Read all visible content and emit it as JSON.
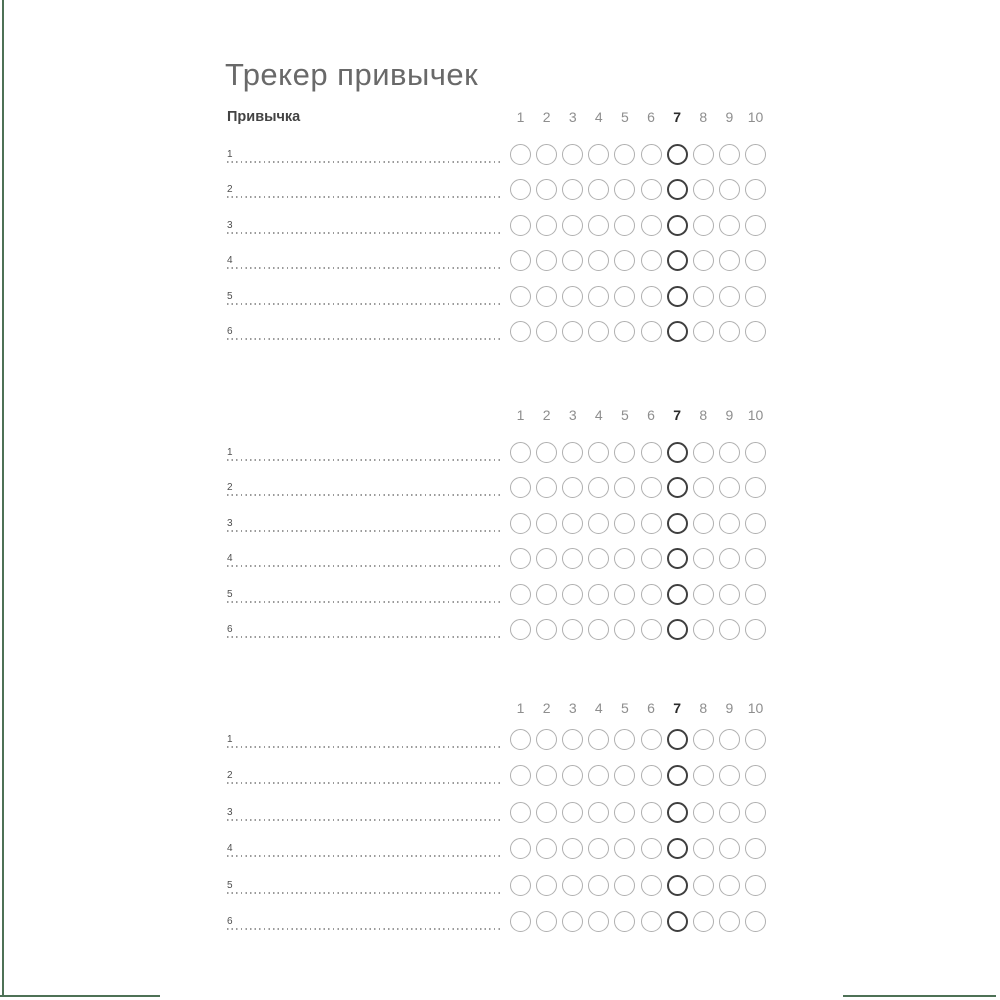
{
  "page": {
    "title": "Трекер привычек"
  },
  "frame": {
    "color": "#4d7156"
  },
  "colors": {
    "circle_stroke": "#b0b0b0",
    "circle_highlight": "#3f3f3f",
    "title_gray": "#696969"
  },
  "tracker": {
    "habit_column_label": "Привычка",
    "day_numbers": [
      "1",
      "2",
      "3",
      "4",
      "5",
      "6",
      "7",
      "8",
      "9",
      "10"
    ],
    "highlighted_day": "7",
    "blocks": [
      {
        "show_habit_label": true,
        "rows": [
          {
            "number": "1",
            "habit": ""
          },
          {
            "number": "2",
            "habit": ""
          },
          {
            "number": "3",
            "habit": ""
          },
          {
            "number": "4",
            "habit": ""
          },
          {
            "number": "5",
            "habit": ""
          },
          {
            "number": "6",
            "habit": ""
          }
        ]
      },
      {
        "show_habit_label": false,
        "rows": [
          {
            "number": "1",
            "habit": ""
          },
          {
            "number": "2",
            "habit": ""
          },
          {
            "number": "3",
            "habit": ""
          },
          {
            "number": "4",
            "habit": ""
          },
          {
            "number": "5",
            "habit": ""
          },
          {
            "number": "6",
            "habit": ""
          }
        ]
      },
      {
        "show_habit_label": false,
        "rows": [
          {
            "number": "1",
            "habit": ""
          },
          {
            "number": "2",
            "habit": ""
          },
          {
            "number": "3",
            "habit": ""
          },
          {
            "number": "4",
            "habit": ""
          },
          {
            "number": "5",
            "habit": ""
          },
          {
            "number": "6",
            "habit": ""
          }
        ]
      }
    ]
  }
}
